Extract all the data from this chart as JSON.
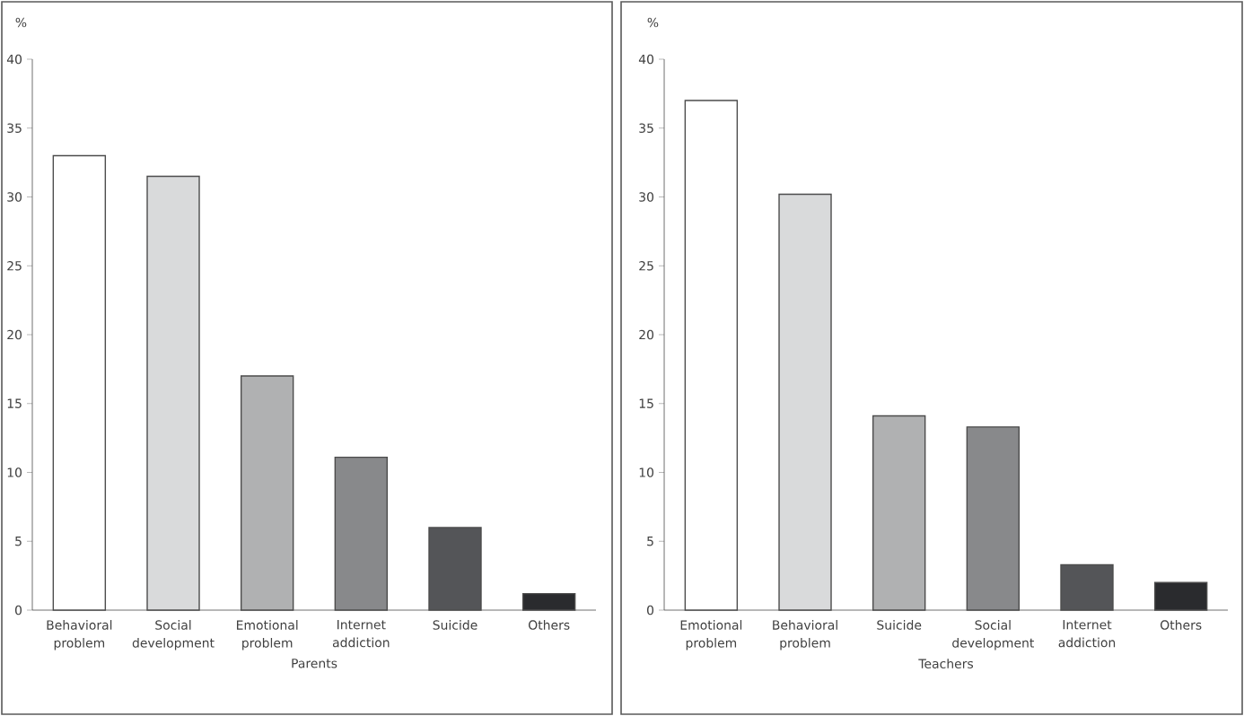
{
  "chart_data": [
    {
      "type": "bar",
      "categories": [
        "Behavioral problem",
        "Social development",
        "Emotional problem",
        "Internet addiction",
        "Suicide",
        "Others"
      ],
      "values": [
        33,
        31.5,
        17,
        11.1,
        6,
        1.2
      ],
      "colors": [
        "#ffffff",
        "#d9dadb",
        "#b0b1b2",
        "#88898b",
        "#545558",
        "#2a2b2e"
      ],
      "xlabel": "Parents",
      "ylabel": "%",
      "ylim": [
        0,
        40
      ],
      "yticks": [
        0,
        5,
        10,
        15,
        20,
        25,
        30,
        35,
        40
      ]
    },
    {
      "type": "bar",
      "categories": [
        "Emotional problem",
        "Behavioral problem",
        "Suicide",
        "Social development",
        "Internet addiction",
        "Others"
      ],
      "values": [
        37,
        30.2,
        14.1,
        13.3,
        3.3,
        2
      ],
      "colors": [
        "#ffffff",
        "#d9dadb",
        "#b0b1b2",
        "#88898b",
        "#545558",
        "#2a2b2e"
      ],
      "xlabel": "Teachers",
      "ylabel": "%",
      "ylim": [
        0,
        40
      ],
      "yticks": [
        0,
        5,
        10,
        15,
        20,
        25,
        30,
        35,
        40
      ]
    }
  ]
}
